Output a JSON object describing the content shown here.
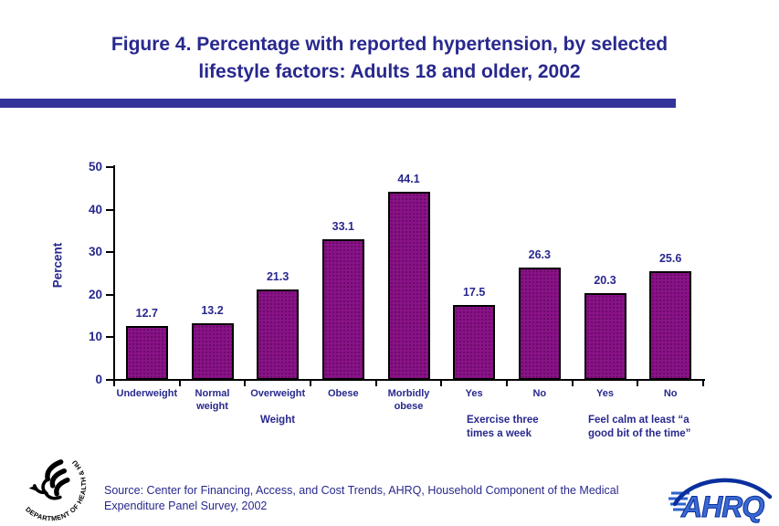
{
  "header": {
    "title": "Figure 4. Percentage with reported hypertension, by selected\nlifestyle factors: Adults 18 and older, 2002"
  },
  "colors": {
    "navy": "#28288e",
    "divider": "#333399",
    "bar_fill": "#8a1288",
    "bar_border": "#000000",
    "axis": "#000000",
    "ahrq_blue": "#3a6ad0",
    "ahrq_dark": "#0b2f9e"
  },
  "chart_data": {
    "type": "bar",
    "title": "Percentage with reported hypertension, by selected lifestyle factors: Adults 18 and older, 2002",
    "ylabel": "Percent",
    "xlabel": "",
    "ylim": [
      0,
      50
    ],
    "yticks": [
      0,
      10,
      20,
      30,
      40,
      50
    ],
    "grid": false,
    "legend": null,
    "categories": [
      "Underweight",
      "Normal weight",
      "Overweight",
      "Obese",
      "Morbidly obese",
      "Yes",
      "No",
      "Yes",
      "No"
    ],
    "tick_labels": [
      "Underweight",
      "Normal\nweight",
      "Overweight",
      "Obese",
      "Morbidly\nobese",
      "Yes",
      "No",
      "Yes",
      "No"
    ],
    "values": [
      12.7,
      13.2,
      21.3,
      33.1,
      44.1,
      17.5,
      26.3,
      20.3,
      25.6
    ],
    "groups": [
      {
        "label": "Weight"
      },
      {
        "label": "Exercise three\ntimes a week"
      },
      {
        "label": "Feel calm at least “a\ngood bit of the time”"
      }
    ]
  },
  "footer": {
    "source": "Source: Center for Financing, Access, and Cost Trends, AHRQ, Household Component of the Medical\nExpenditure Panel Survey, 2002"
  },
  "logos": {
    "hhs_circle_text": "DEPARTMENT OF HEALTH & HUMAN SERVICES • USA",
    "ahrq": "AHRQ"
  }
}
